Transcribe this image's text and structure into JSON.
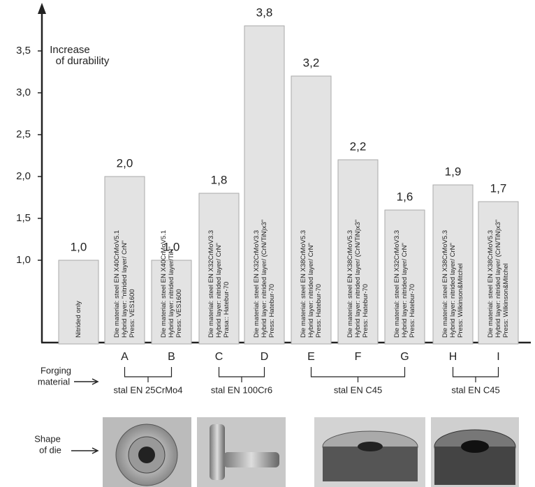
{
  "chart_data": {
    "type": "bar",
    "y_label_lines": [
      "Increase",
      "of durability"
    ],
    "categories": [
      null,
      "A",
      "B",
      "C",
      "D",
      "E",
      "F",
      "G",
      "H",
      "I"
    ],
    "values": [
      1.0,
      2.0,
      1.0,
      1.8,
      3.8,
      3.2,
      2.2,
      1.6,
      1.9,
      1.7
    ],
    "value_labels": [
      "1,0",
      "2,0",
      "1,0",
      "1,8",
      "3,8",
      "3,2",
      "2,2",
      "1,6",
      "1,9",
      "1,7"
    ],
    "bar_texts": [
      [
        "Nitrided only"
      ],
      [
        "Die material: steel EN X40CrMoV5.1",
        "Hybrid layer: \"nitrided layer/ CrN\"",
        "Press: VES1600"
      ],
      [
        "Die material: steel EN X40CrMoV5.1",
        "Hybrid layer: nitrided layer/TiN\"",
        "Press: VES1600"
      ],
      [
        "Die material: steel EN X32CrMoV3.3",
        "Hybrid layer: nitrided layer/ CrN\"",
        "Prasa:: Hatebur-70"
      ],
      [
        "Die material: steel EN X32CrMoV3.3",
        "Hybrid layer: nitrided layer/ (CrN/TiN)x3\"",
        "Press:  Hatebur-70"
      ],
      [
        "Die material: steel EN X38CrMoV5.3",
        "Hybrid layer: nitrided layer/ CrN\"",
        "Press: Hatebur-70"
      ],
      [
        "Die material: steel EN X38CrMoV5.3",
        "Hybrid layer: nitrided layer/ (CrN/TiN)x3\"",
        "Press:  Hatebur-70"
      ],
      [
        "Die material: steel EN X32CrMoV3.3",
        "Hybrid layer: nitrided layer/ CrN\"",
        "Press: Hatebur-70"
      ],
      [
        "Die material: steel EN X38CrMoV5.3",
        "Hybrid layer: nitrided layer/ CrN\"",
        "Press: Wilkinson&Mitchel"
      ],
      [
        "Die material: steel EN X38CrMoV5.3",
        "Hybrid layer: nitrided layer/ (CrN/TiN)x3\"",
        "Press: Wilkinson&Mitchel"
      ]
    ],
    "color": "#e3e3e3",
    "ylim": [
      0,
      4.0
    ],
    "yticks": [
      {
        "value": 1.0,
        "label": "1,0"
      },
      {
        "value": 1.5,
        "label": "1,5"
      },
      {
        "value": 2.0,
        "label": "2,0"
      },
      {
        "value": 2.5,
        "label": "2,5"
      },
      {
        "value": 3.0,
        "label": "3,0"
      },
      {
        "value": 3.5,
        "label": "3,5"
      }
    ],
    "grid": false,
    "forging_label_lines": [
      "Forging",
      "material"
    ],
    "forging_groups": [
      "stal EN 25CrMo4",
      "stal EN 100Cr6",
      "stal EN C45",
      "stal EN C45"
    ],
    "shape_label_lines": [
      "Shape",
      "of die"
    ]
  }
}
